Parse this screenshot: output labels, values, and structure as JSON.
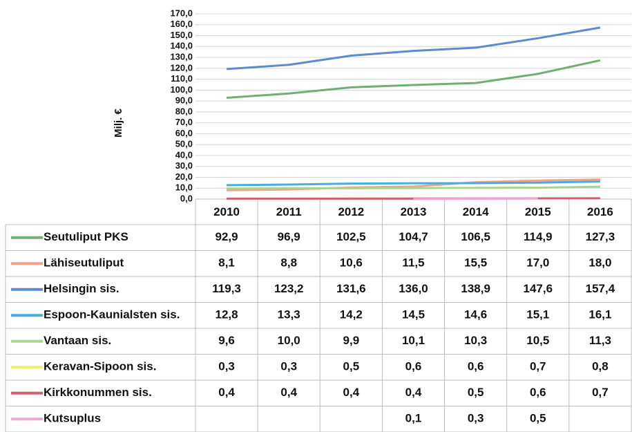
{
  "chart_data": {
    "type": "line",
    "y_label": "Milj. €",
    "categories": [
      "2010",
      "2011",
      "2012",
      "2013",
      "2014",
      "2015",
      "2016"
    ],
    "ylim": [
      0,
      170
    ],
    "yticks": [
      {
        "value": 0,
        "label": "0,0"
      },
      {
        "value": 10,
        "label": "10,0"
      },
      {
        "value": 20,
        "label": "20,0"
      },
      {
        "value": 30,
        "label": "30,0"
      },
      {
        "value": 40,
        "label": "40,0"
      },
      {
        "value": 50,
        "label": "50,0"
      },
      {
        "value": 60,
        "label": "60,0"
      },
      {
        "value": 70,
        "label": "70,0"
      },
      {
        "value": 80,
        "label": "80,0"
      },
      {
        "value": 90,
        "label": "90,0"
      },
      {
        "value": 100,
        "label": "100,0"
      },
      {
        "value": 110,
        "label": "110,0"
      },
      {
        "value": 120,
        "label": "120,0"
      },
      {
        "value": 130,
        "label": "130,0"
      },
      {
        "value": 140,
        "label": "140,0"
      },
      {
        "value": 150,
        "label": "150,0"
      },
      {
        "value": 160,
        "label": "160,0"
      },
      {
        "value": 170,
        "label": "170,0"
      }
    ],
    "grid": true,
    "series": [
      {
        "name": "Seutuliput PKS",
        "color": "#6fae74",
        "values": [
          92.9,
          96.9,
          102.5,
          104.7,
          106.5,
          114.9,
          127.3
        ],
        "value_labels": [
          "92,9",
          "96,9",
          "102,5",
          "104,7",
          "106,5",
          "114,9",
          "127,3"
        ]
      },
      {
        "name": "Lähiseutuliput",
        "color": "#f2a384",
        "values": [
          8.1,
          8.8,
          10.6,
          11.5,
          15.5,
          17.0,
          18.0
        ],
        "value_labels": [
          "8,1",
          "8,8",
          "10,6",
          "11,5",
          "15,5",
          "17,0",
          "18,0"
        ]
      },
      {
        "name": "Helsingin sis.",
        "color": "#5b8ccc",
        "values": [
          119.3,
          123.2,
          131.6,
          136.0,
          138.9,
          147.6,
          157.4
        ],
        "value_labels": [
          "119,3",
          "123,2",
          "131,6",
          "136,0",
          "138,9",
          "147,6",
          "157,4"
        ]
      },
      {
        "name": "Espoon-Kaunialsten sis.",
        "color": "#47ade0",
        "values": [
          12.8,
          13.3,
          14.2,
          14.5,
          14.6,
          15.1,
          16.1
        ],
        "value_labels": [
          "12,8",
          "13,3",
          "14,2",
          "14,5",
          "14,6",
          "15,1",
          "16,1"
        ]
      },
      {
        "name": "Vantaan sis.",
        "color": "#a6d68c",
        "values": [
          9.6,
          10.0,
          9.9,
          10.1,
          10.3,
          10.5,
          11.3
        ],
        "value_labels": [
          "9,6",
          "10,0",
          "9,9",
          "10,1",
          "10,3",
          "10,5",
          "11,3"
        ]
      },
      {
        "name": "Keravan-Sipoon sis.",
        "color": "#eeee6a",
        "values": [
          0.3,
          0.3,
          0.5,
          0.6,
          0.6,
          0.7,
          0.8
        ],
        "value_labels": [
          "0,3",
          "0,3",
          "0,5",
          "0,6",
          "0,6",
          "0,7",
          "0,8"
        ]
      },
      {
        "name": "Kirkkonummen sis.",
        "color": "#d0606e",
        "values": [
          0.4,
          0.4,
          0.4,
          0.4,
          0.5,
          0.6,
          0.7
        ],
        "value_labels": [
          "0,4",
          "0,4",
          "0,4",
          "0,4",
          "0,5",
          "0,6",
          "0,7"
        ]
      },
      {
        "name": "Kutsuplus",
        "color": "#f2a6d6",
        "values": [
          null,
          null,
          null,
          0.1,
          0.3,
          0.5,
          null
        ],
        "value_labels": [
          null,
          null,
          null,
          "0,1",
          "0,3",
          "0,5",
          null
        ]
      }
    ]
  }
}
